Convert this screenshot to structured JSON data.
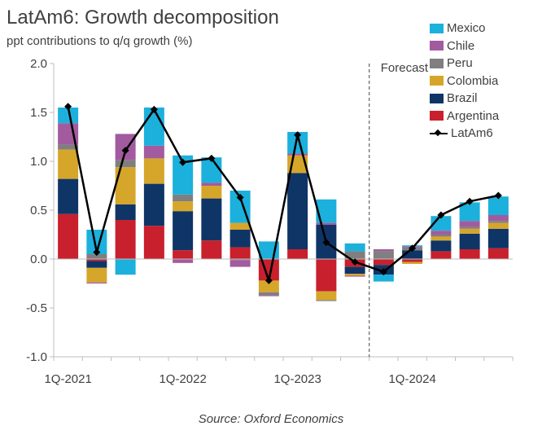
{
  "title": "LatAm6: Growth decomposition",
  "subtitle": "ppt contributions to q/q growth (%)",
  "source": "Source: Oxford Economics",
  "forecast_label": "Forecast",
  "colors": {
    "Mexico": "#1cb0dc",
    "Chile": "#a25b9e",
    "Peru": "#7f7f7f",
    "Colombia": "#d6a62a",
    "Brazil": "#0f3567",
    "Argentina": "#c8202c",
    "LatAm6": "#000000",
    "axis": "#bfbfbf",
    "text": "#404040"
  },
  "chart_data": {
    "type": "bar",
    "stacked": true,
    "ylim": [
      -1.0,
      2.0
    ],
    "yticks": [
      "2.0",
      "1.5",
      "1.0",
      "0.5",
      "0.0",
      "-0.5",
      "-1.0"
    ],
    "ytick_values": [
      2.0,
      1.5,
      1.0,
      0.5,
      0.0,
      -0.5,
      -1.0
    ],
    "xtick_labels": [
      {
        "label": "1Q-2021",
        "index": 0
      },
      {
        "label": "1Q-2022",
        "index": 4
      },
      {
        "label": "1Q-2023",
        "index": 8
      },
      {
        "label": "1Q-2024",
        "index": 12
      }
    ],
    "categories": [
      "1Q-2021",
      "2Q-2021",
      "3Q-2021",
      "4Q-2021",
      "1Q-2022",
      "2Q-2022",
      "3Q-2022",
      "4Q-2022",
      "1Q-2023",
      "2Q-2023",
      "3Q-2023",
      "4Q-2023",
      "1Q-2024",
      "2Q-2024",
      "3Q-2024",
      "4Q-2024"
    ],
    "forecast_start_index": 11,
    "legend_position": "top-right",
    "series": [
      {
        "name": "Argentina",
        "values": [
          0.46,
          -0.02,
          0.4,
          0.34,
          0.09,
          0.19,
          0.12,
          -0.22,
          0.1,
          -0.33,
          -0.08,
          -0.06,
          -0.03,
          0.08,
          0.1,
          0.11
        ]
      },
      {
        "name": "Brazil",
        "values": [
          0.36,
          -0.07,
          0.16,
          0.43,
          0.4,
          0.43,
          0.18,
          0.0,
          0.78,
          0.35,
          -0.07,
          -0.1,
          0.09,
          0.11,
          0.16,
          0.2
        ]
      },
      {
        "name": "Colombia",
        "values": [
          0.3,
          -0.15,
          0.38,
          0.26,
          0.1,
          0.13,
          0.07,
          -0.12,
          0.18,
          -0.09,
          -0.02,
          0.0,
          -0.02,
          0.04,
          0.05,
          0.06
        ]
      },
      {
        "name": "Peru",
        "values": [
          0.05,
          0.05,
          0.07,
          0.0,
          0.07,
          0.0,
          -0.01,
          -0.03,
          0.0,
          -0.01,
          0.08,
          0.08,
          0.03,
          0.02,
          0.02,
          0.02
        ]
      },
      {
        "name": "Chile",
        "values": [
          0.22,
          -0.01,
          0.27,
          0.13,
          -0.04,
          0.03,
          -0.07,
          -0.01,
          0.02,
          0.02,
          -0.01,
          0.02,
          0.01,
          0.04,
          0.06,
          0.06
        ]
      },
      {
        "name": "Mexico",
        "values": [
          0.16,
          0.25,
          -0.16,
          0.39,
          0.4,
          0.26,
          0.33,
          0.18,
          0.22,
          0.24,
          0.08,
          -0.07,
          0.01,
          0.15,
          0.19,
          0.19
        ]
      }
    ],
    "line": {
      "name": "LatAm6",
      "values": [
        1.56,
        0.07,
        1.11,
        1.53,
        0.99,
        1.03,
        0.63,
        -0.22,
        1.27,
        0.17,
        -0.03,
        -0.13,
        0.11,
        0.45,
        0.59,
        0.65
      ]
    }
  }
}
